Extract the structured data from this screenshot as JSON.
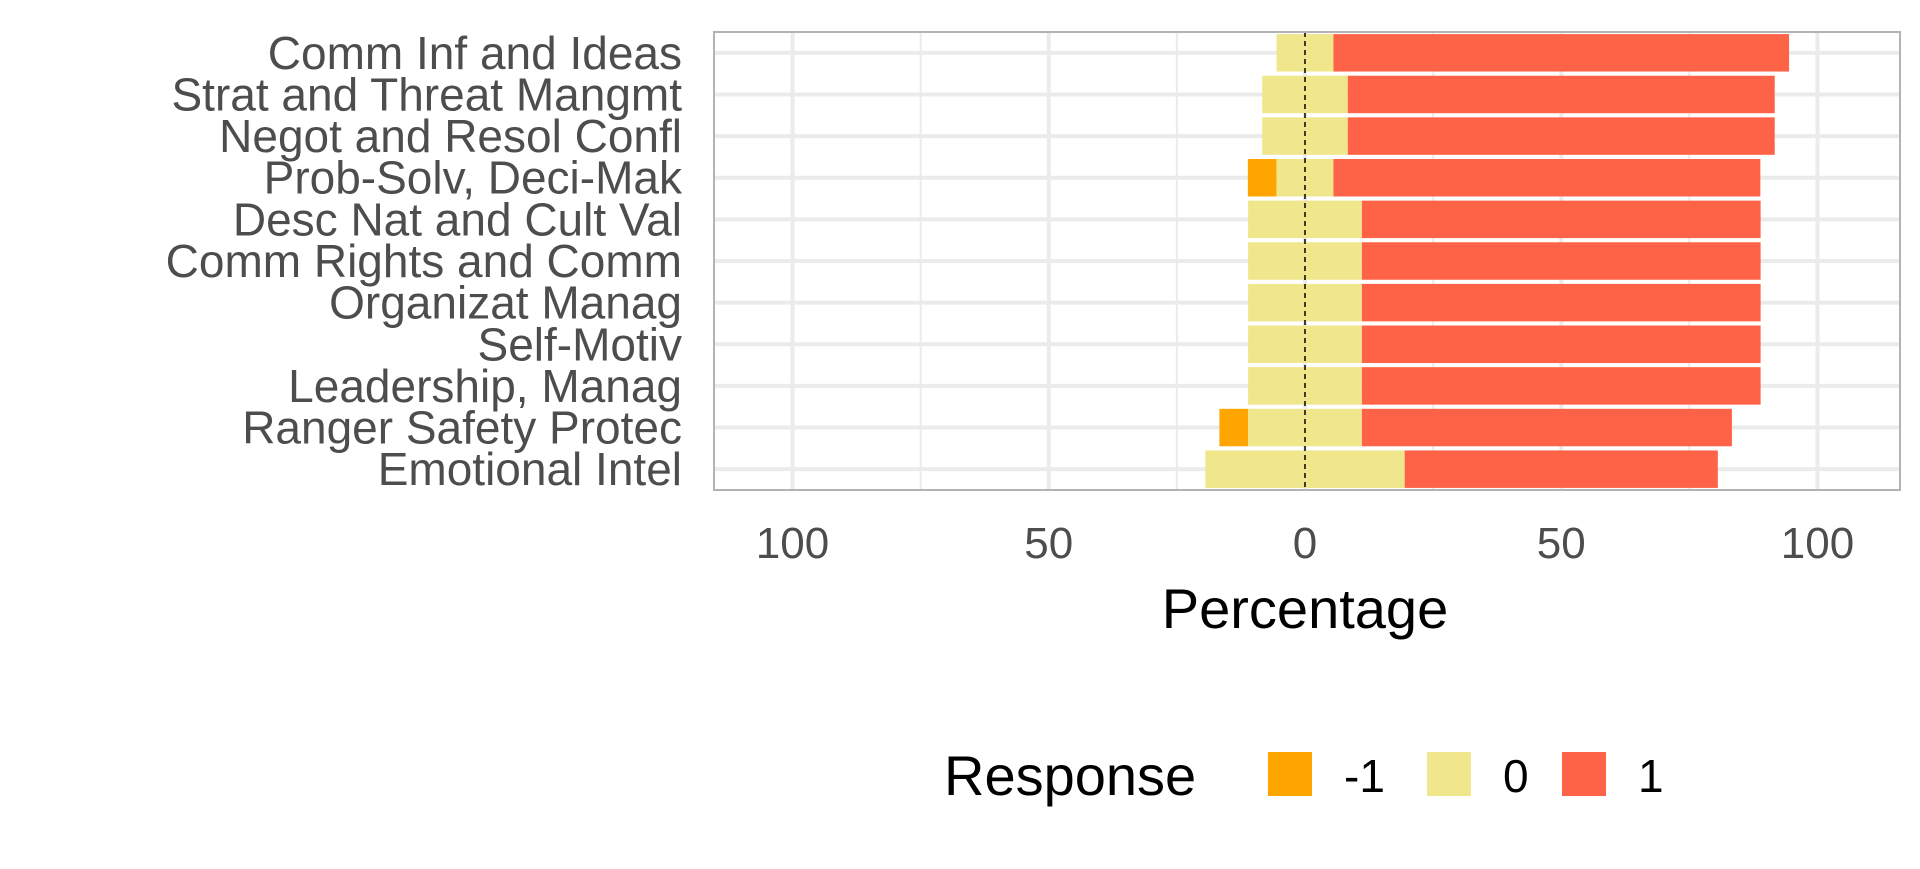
{
  "chart_data": {
    "type": "bar",
    "orientation": "horizontal",
    "stacked": "diverging",
    "title": "",
    "xlabel": "Percentage",
    "ylabel": "",
    "xlim": [
      -115,
      115
    ],
    "x_ticks": [
      -100,
      -50,
      0,
      50,
      100
    ],
    "x_tick_labels": [
      "100",
      "50",
      "0",
      "50",
      "100"
    ],
    "grid": true,
    "legend_position": "bottom",
    "legend_title": "Response",
    "categories": [
      "Comm Inf and Ideas",
      "Strat and Threat Mangmt",
      "Negot and Resol Confl",
      "Prob-Solv, Deci-Mak",
      "Desc Nat and Cult Val",
      "Comm Rights and Comm",
      "Organizat Manag",
      "Self-Motiv",
      "Leadership, Manag",
      "Ranger Safety Protec",
      "Emotional Intel"
    ],
    "series": [
      {
        "name": "-1",
        "color": "#FFA500",
        "values": [
          0,
          0,
          0,
          5.6,
          0,
          0,
          0,
          0,
          0,
          5.6,
          0
        ]
      },
      {
        "name": "0",
        "color": "#F0E68C",
        "values": [
          11.1,
          16.7,
          16.7,
          11.1,
          22.2,
          22.2,
          22.2,
          22.2,
          22.2,
          22.2,
          38.9
        ]
      },
      {
        "name": "1",
        "color": "#FF6347",
        "values": [
          88.9,
          83.3,
          83.3,
          83.3,
          77.8,
          77.8,
          77.8,
          77.8,
          77.8,
          72.2,
          61.1
        ]
      }
    ]
  }
}
